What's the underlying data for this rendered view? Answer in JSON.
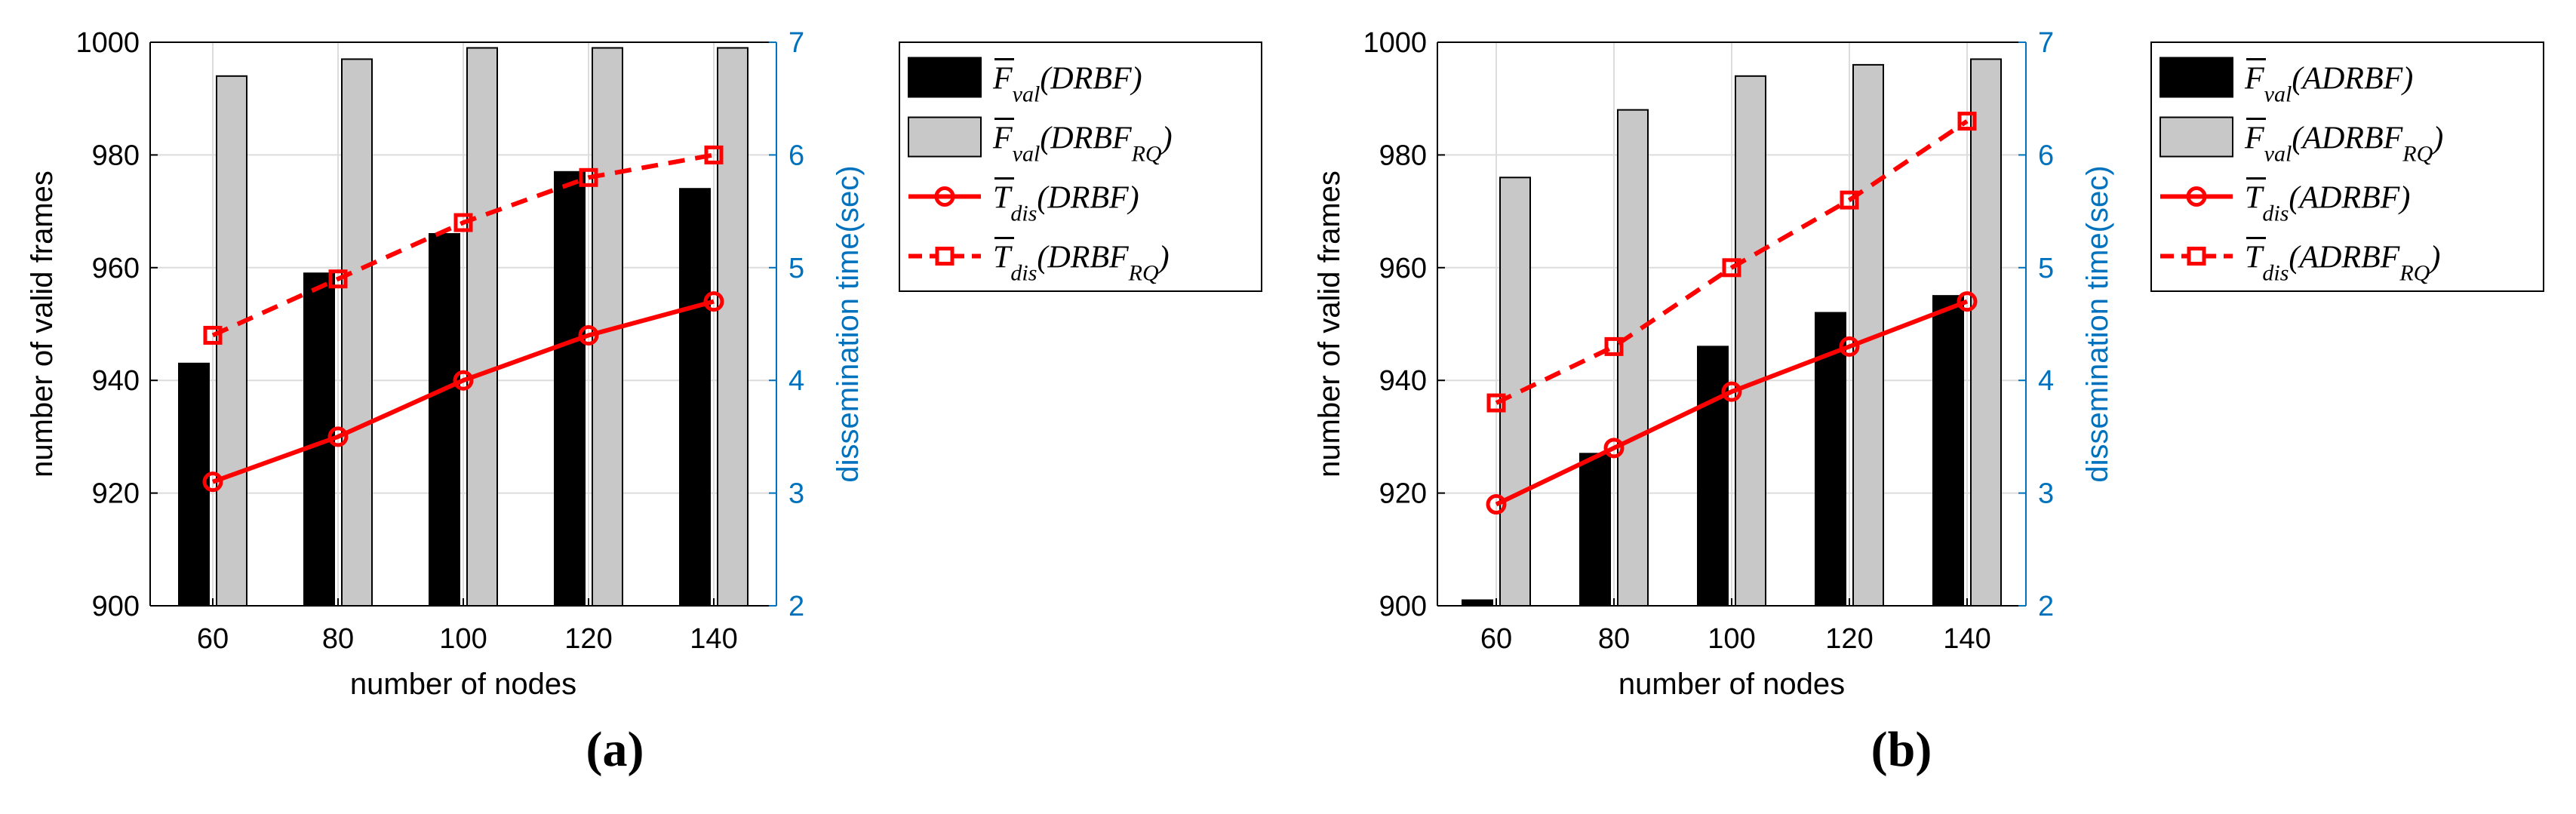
{
  "chart_data": [
    {
      "type": "bar",
      "panel_label": "(a)",
      "title": "",
      "xlabel": "number of nodes",
      "ylabel": "number of valid frames",
      "ylabel_right": "dissemination time(sec)",
      "categories": [
        "60",
        "80",
        "100",
        "120",
        "140"
      ],
      "ylim": [
        900,
        1000
      ],
      "yticks": [
        "900",
        "920",
        "940",
        "960",
        "980",
        "1000"
      ],
      "ylim_right": [
        2,
        7
      ],
      "yticks_right": [
        "2",
        "3",
        "4",
        "5",
        "6",
        "7"
      ],
      "grid": true,
      "legend_placement": "outside-right",
      "series": [
        {
          "name": "F̄val(DRBF)",
          "legend": {
            "main": "F",
            "sub": "val",
            "arg": "(DRBF)",
            "argsub": ""
          },
          "kind": "bar",
          "axis": "left",
          "color": "#000000",
          "values": [
            943,
            959,
            966,
            977,
            974
          ]
        },
        {
          "name": "F̄val(DRBF_RQ)",
          "legend": {
            "main": "F",
            "sub": "val",
            "arg": "(DRBF",
            "argsub": "RQ"
          },
          "kind": "bar",
          "axis": "left",
          "color": "#c8c8c8",
          "values": [
            994,
            997,
            999,
            999,
            999
          ]
        },
        {
          "name": "T̄dis(DRBF)",
          "legend": {
            "main": "T",
            "sub": "dis",
            "arg": "(DRBF)",
            "argsub": ""
          },
          "kind": "line",
          "axis": "right",
          "color": "#ff0000",
          "dash": false,
          "marker": "circle",
          "values": [
            3.1,
            3.5,
            4.0,
            4.4,
            4.7
          ]
        },
        {
          "name": "T̄dis(DRBF_RQ)",
          "legend": {
            "main": "T",
            "sub": "dis",
            "arg": "(DRBF",
            "argsub": "RQ"
          },
          "kind": "line",
          "axis": "right",
          "color": "#ff0000",
          "dash": true,
          "marker": "square",
          "values": [
            4.4,
            4.9,
            5.4,
            5.8,
            6.0
          ]
        }
      ]
    },
    {
      "type": "bar",
      "panel_label": "(b)",
      "title": "",
      "xlabel": "number of nodes",
      "ylabel": "number of valid frames",
      "ylabel_right": "dissemination time(sec)",
      "categories": [
        "60",
        "80",
        "100",
        "120",
        "140"
      ],
      "ylim": [
        900,
        1000
      ],
      "yticks": [
        "900",
        "920",
        "940",
        "960",
        "980",
        "1000"
      ],
      "ylim_right": [
        2,
        7
      ],
      "yticks_right": [
        "2",
        "3",
        "4",
        "5",
        "6",
        "7"
      ],
      "grid": true,
      "legend_placement": "outside-right",
      "series": [
        {
          "name": "F̄val(ADRBF)",
          "legend": {
            "main": "F",
            "sub": "val",
            "arg": "(ADRBF)",
            "argsub": ""
          },
          "kind": "bar",
          "axis": "left",
          "color": "#000000",
          "values": [
            901,
            927,
            946,
            952,
            955
          ]
        },
        {
          "name": "F̄val(ADRBF_RQ)",
          "legend": {
            "main": "F",
            "sub": "val",
            "arg": "(ADRBF",
            "argsub": "RQ"
          },
          "kind": "bar",
          "axis": "left",
          "color": "#c8c8c8",
          "values": [
            976,
            988,
            994,
            996,
            997
          ]
        },
        {
          "name": "T̄dis(ADRBF)",
          "legend": {
            "main": "T",
            "sub": "dis",
            "arg": "(ADRBF)",
            "argsub": ""
          },
          "kind": "line",
          "axis": "right",
          "color": "#ff0000",
          "dash": false,
          "marker": "circle",
          "values": [
            2.9,
            3.4,
            3.9,
            4.3,
            4.7
          ]
        },
        {
          "name": "T̄dis(ADRBF_RQ)",
          "legend": {
            "main": "T",
            "sub": "dis",
            "arg": "(ADRBF",
            "argsub": "RQ"
          },
          "kind": "line",
          "axis": "right",
          "color": "#ff0000",
          "dash": true,
          "marker": "square",
          "values": [
            3.8,
            4.3,
            5.0,
            5.6,
            6.3
          ]
        }
      ]
    }
  ],
  "colors": {
    "left_axis": "#000000",
    "right_axis": "#0072bd",
    "grid": "#dcdcdc"
  }
}
